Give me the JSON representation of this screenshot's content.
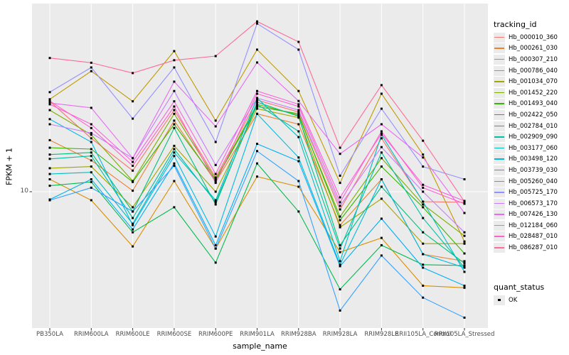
{
  "chart_data": {
    "type": "line",
    "title": "",
    "xlabel": "sample_name",
    "ylabel": "FPKM + 1",
    "yscale": "log10",
    "y_tick_labels": [
      "10"
    ],
    "y_tick_value": 10,
    "ylim": [
      2.5,
      60
    ],
    "grid": true,
    "panel_bg": "#EBEBEB",
    "grid_color": "#FFFFFF",
    "point_color": "#000000",
    "legend_title": "tracking_id",
    "legend_position": "right",
    "categories": [
      "PB350LA",
      "RRIM600LA",
      "RRIM600LE",
      "RRIM600SE",
      "RRIM600PE",
      "RRIM901LA",
      "RRIM928BA",
      "RRIM928LA",
      "RRIM928LE",
      "RRII105LA_Control",
      "RRII105LA_Stressed"
    ],
    "series": [
      {
        "name": "Hb_000010_360",
        "color": "#F8766D",
        "values": [
          24.3,
          16.9,
          12.3,
          22.3,
          11.5,
          24.6,
          21.9,
          8.4,
          16.9,
          9.07,
          9.01
        ]
      },
      {
        "name": "Hb_000261_030",
        "color": "#EA8331",
        "values": [
          16.6,
          13.6,
          10.1,
          20.1,
          11.0,
          21.5,
          19.4,
          7.2,
          11.3,
          5.41,
          5.05
        ]
      },
      {
        "name": "Hb_000307_210",
        "color": "#D89000",
        "values": [
          11.3,
          9.2,
          5.84,
          11.1,
          5.72,
          11.6,
          10.5,
          5.52,
          6.35,
          3.97,
          3.89
        ]
      },
      {
        "name": "Hb_000786_040",
        "color": "#C09B00",
        "values": [
          24.8,
          32.7,
          24.3,
          39.8,
          20.1,
          40.4,
          26.9,
          10.9,
          26.2,
          14.4,
          6.13
        ]
      },
      {
        "name": "Hb_001034_070",
        "color": "#A3A500",
        "values": [
          12.6,
          12.8,
          8.58,
          15.7,
          10.0,
          22.6,
          20.7,
          7.05,
          9.33,
          6.0,
          6.0
        ]
      },
      {
        "name": "Hb_001452_220",
        "color": "#7CAE00",
        "values": [
          22.3,
          17.5,
          11.1,
          21.5,
          11.3,
          23.6,
          21.2,
          7.83,
          13.9,
          8.82,
          6.48
        ]
      },
      {
        "name": "Hb_001493_040",
        "color": "#39B600",
        "values": [
          15.4,
          15.2,
          11.0,
          19.4,
          11.2,
          23.1,
          21.5,
          7.56,
          12.8,
          8.58,
          5.45
        ]
      },
      {
        "name": "Hb_002422_050",
        "color": "#00BB4E",
        "values": [
          10.6,
          11.0,
          6.71,
          8.58,
          4.98,
          13.2,
          8.23,
          3.83,
          5.91,
          4.88,
          4.84
        ]
      },
      {
        "name": "Hb_002784_010",
        "color": "#00BF7D",
        "values": [
          14.4,
          14.7,
          8.23,
          18.7,
          8.82,
          24.1,
          21.0,
          5.91,
          10.5,
          6.71,
          4.95
        ]
      },
      {
        "name": "Hb_002909_090",
        "color": "#00C1A3",
        "values": [
          13.8,
          14.2,
          7.72,
          15.2,
          9.01,
          23.6,
          18.1,
          5.72,
          14.7,
          7.72,
          4.74
        ]
      },
      {
        "name": "Hb_003177_060",
        "color": "#00BFC4",
        "values": [
          11.9,
          12.1,
          7.3,
          14.7,
          9.2,
          25.1,
          17.1,
          5.05,
          17.5,
          9.07,
          4.55
        ]
      },
      {
        "name": "Hb_003498_120",
        "color": "#00BAE0",
        "values": [
          20.4,
          16.3,
          7.2,
          14.2,
          6.44,
          21.5,
          14.0,
          4.88,
          11.3,
          5.41,
          4.74
        ]
      },
      {
        "name": "Hb_003739_030",
        "color": "#00B0F6",
        "values": [
          9.26,
          11.3,
          6.9,
          13.2,
          5.91,
          16.0,
          13.5,
          4.81,
          7.67,
          4.74,
          3.97
        ]
      },
      {
        "name": "Hb_005260_040",
        "color": "#35A2FF",
        "values": [
          9.2,
          10.4,
          8.23,
          12.9,
          5.72,
          14.9,
          11.1,
          3.11,
          5.34,
          3.53,
          2.9
        ]
      },
      {
        "name": "Hb_005725_170",
        "color": "#9590FF",
        "values": [
          26.6,
          33.9,
          20.5,
          33.9,
          16.3,
          52.2,
          40.4,
          11.7,
          22.6,
          12.8,
          11.3
        ]
      },
      {
        "name": "Hb_006573_170",
        "color": "#C77CFF",
        "values": [
          19.4,
          17.8,
          13.9,
          26.9,
          13.0,
          25.1,
          22.3,
          8.7,
          15.5,
          10.0,
          6.71
        ]
      },
      {
        "name": "Hb_007426_130",
        "color": "#E76BF3",
        "values": [
          23.9,
          22.8,
          13.9,
          29.5,
          19.0,
          35.6,
          24.4,
          14.5,
          19.4,
          14.0,
          8.11
        ]
      },
      {
        "name": "Hb_012184_060",
        "color": "#FA62DB",
        "values": [
          23.6,
          19.4,
          13.4,
          24.3,
          11.9,
          26.9,
          23.6,
          9.46,
          17.7,
          10.7,
          9.13
        ]
      },
      {
        "name": "Hb_028487_010",
        "color": "#FF61CC",
        "values": [
          24.4,
          18.7,
          12.9,
          23.1,
          10.9,
          26.2,
          23.1,
          9.01,
          18.1,
          10.4,
          8.88
        ]
      },
      {
        "name": "Hb_086287_010",
        "color": "#FF6A98",
        "values": [
          37.2,
          35.5,
          32.1,
          36.4,
          37.9,
          53.3,
          43.6,
          15.4,
          28.5,
          16.5,
          9.07
        ]
      }
    ],
    "quant_legend": {
      "title": "quant_status",
      "items": [
        {
          "label": "OK",
          "marker": "black-square"
        }
      ]
    }
  }
}
